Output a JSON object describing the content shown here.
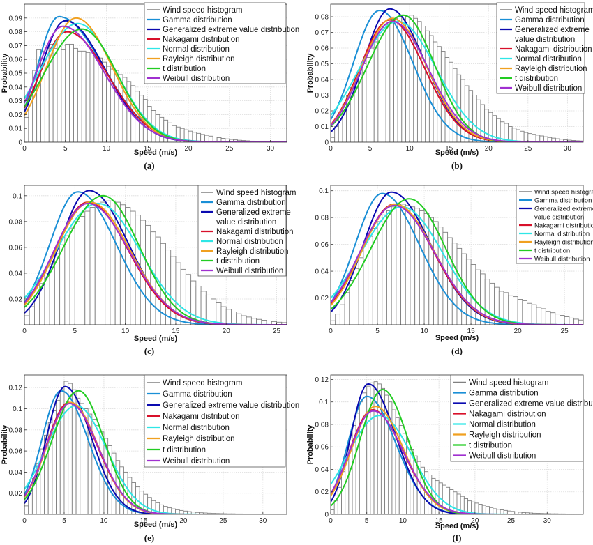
{
  "colors": {
    "histogram": "#808080",
    "gamma": "#1a8fd6",
    "gev": "#0a0ab0",
    "nakagami": "#d8102a",
    "normal": "#2ee6e6",
    "rayleigh": "#f0a020",
    "t": "#22cc22",
    "weibull": "#a030d0"
  },
  "chart_data": [
    {
      "type": "bar",
      "panel_label": "(a)",
      "xlabel": "Speed (m/s)",
      "ylabel": "Probability",
      "xlim": [
        0,
        32
      ],
      "ylim": [
        0,
        0.1
      ],
      "xticks": [
        0,
        5,
        10,
        15,
        20,
        25,
        30
      ],
      "yticks": [
        0,
        0.01,
        0.02,
        0.03,
        0.04,
        0.05,
        0.06,
        0.07,
        0.08,
        0.09
      ],
      "grid": true,
      "legend_position": "top-right",
      "legend": [
        "Wind speed histogram",
        "Gamma distribution",
        "Generalized extreme value distribution",
        "Nakagami distribution",
        "Normal distribution",
        "Rayleigh distribution",
        "t distribution",
        "Weibull distribution"
      ],
      "histogram": {
        "bin_width": 0.5,
        "values": [
          0.018,
          0.032,
          0.052,
          0.067,
          0.066,
          0.069,
          0.071,
          0.068,
          0.074,
          0.067,
          0.071,
          0.071,
          0.068,
          0.066,
          0.066,
          0.065,
          0.064,
          0.063,
          0.061,
          0.058,
          0.055,
          0.053,
          0.052,
          0.049,
          0.047,
          0.044,
          0.041,
          0.037,
          0.034,
          0.031,
          0.026,
          0.023,
          0.02,
          0.018,
          0.016,
          0.014,
          0.012,
          0.011,
          0.01,
          0.009,
          0.008,
          0.0072,
          0.0064,
          0.0056,
          0.005,
          0.0044,
          0.0038,
          0.0033,
          0.0028,
          0.0024,
          0.002,
          0.0017,
          0.0014,
          0.0012,
          0.001,
          0.0008,
          0.0007,
          0.0006,
          0.0005,
          0.0004,
          0.0003,
          0.0003,
          0.0002,
          0.0002
        ]
      },
      "series": [
        {
          "name": "Gamma distribution",
          "peak_x": 4.2,
          "peak_y": 0.091,
          "sd_left": 2.6,
          "sd_right": 5.4
        },
        {
          "name": "Generalized extreme value distribution",
          "peak_x": 5.0,
          "peak_y": 0.088,
          "sd_left": 3.0,
          "sd_right": 4.8
        },
        {
          "name": "Nakagami distribution",
          "peak_x": 5.2,
          "peak_y": 0.08,
          "sd_left": 3.4,
          "sd_right": 5.0
        },
        {
          "name": "Normal distribution",
          "peak_x": 6.5,
          "peak_y": 0.086,
          "sd_left": 4.6,
          "sd_right": 4.6
        },
        {
          "name": "Rayleigh distribution",
          "peak_x": 6.3,
          "peak_y": 0.09,
          "sd_left": 3.6,
          "sd_right": 4.4
        },
        {
          "name": "t distribution",
          "peak_x": 7.0,
          "peak_y": 0.082,
          "sd_left": 4.6,
          "sd_right": 4.3
        },
        {
          "name": "Weibull distribution",
          "peak_x": 4.7,
          "peak_y": 0.084,
          "sd_left": 3.2,
          "sd_right": 5.0
        }
      ]
    },
    {
      "type": "bar",
      "panel_label": "(b)",
      "xlabel": "Speed (m/s)",
      "ylabel": "Probability",
      "xlim": [
        0,
        32
      ],
      "ylim": [
        0,
        0.088
      ],
      "xticks": [
        0,
        5,
        10,
        15,
        20,
        25,
        30
      ],
      "yticks": [
        0,
        0.01,
        0.02,
        0.03,
        0.04,
        0.05,
        0.06,
        0.07,
        0.08
      ],
      "grid": true,
      "legend_position": "top-right",
      "legend": [
        "Wind speed histogram",
        "Gamma distribution",
        "Generalized extreme value distribution",
        "Nakagami distribution",
        "Normal distribution",
        "Rayleigh distribution",
        "t distribution",
        "Weibull distribution"
      ],
      "histogram": {
        "bin_width": 0.5,
        "values": [
          0.003,
          0.01,
          0.018,
          0.024,
          0.03,
          0.035,
          0.041,
          0.046,
          0.05,
          0.054,
          0.06,
          0.064,
          0.068,
          0.073,
          0.075,
          0.077,
          0.079,
          0.08,
          0.081,
          0.08,
          0.081,
          0.079,
          0.077,
          0.074,
          0.071,
          0.068,
          0.064,
          0.061,
          0.058,
          0.054,
          0.051,
          0.047,
          0.043,
          0.04,
          0.036,
          0.033,
          0.03,
          0.027,
          0.024,
          0.021,
          0.019,
          0.017,
          0.015,
          0.013,
          0.012,
          0.01,
          0.009,
          0.008,
          0.007,
          0.0062,
          0.0055,
          0.005,
          0.0045,
          0.004,
          0.0035,
          0.003,
          0.0026,
          0.0022,
          0.0019,
          0.0016,
          0.0013,
          0.0011,
          0.0009,
          0.0008
        ]
      },
      "series": [
        {
          "name": "Gamma distribution",
          "peak_x": 6.2,
          "peak_y": 0.084,
          "sd_left": 3.3,
          "sd_right": 4.2
        },
        {
          "name": "Generalized extreme value distribution",
          "peak_x": 7.5,
          "peak_y": 0.085,
          "sd_left": 3.3,
          "sd_right": 4.4
        },
        {
          "name": "Nakagami distribution",
          "peak_x": 7.5,
          "peak_y": 0.078,
          "sd_left": 3.8,
          "sd_right": 4.4
        },
        {
          "name": "Normal distribution",
          "peak_x": 8.5,
          "peak_y": 0.077,
          "sd_left": 4.9,
          "sd_right": 4.9
        },
        {
          "name": "Rayleigh distribution",
          "peak_x": 7.8,
          "peak_y": 0.079,
          "sd_left": 3.9,
          "sd_right": 4.4
        },
        {
          "name": "t distribution",
          "peak_x": 9.2,
          "peak_y": 0.081,
          "sd_left": 4.5,
          "sd_right": 4.0
        },
        {
          "name": "Weibull distribution",
          "peak_x": 7.8,
          "peak_y": 0.077,
          "sd_left": 3.9,
          "sd_right": 4.6
        }
      ]
    },
    {
      "type": "bar",
      "panel_label": "(c)",
      "xlabel": "Speed (m/s)",
      "ylabel": "",
      "xlim": [
        0,
        26
      ],
      "ylim": [
        0,
        0.108
      ],
      "xticks": [
        0,
        5,
        10,
        15,
        20,
        25
      ],
      "yticks": [
        0.02,
        0.04,
        0.06,
        0.08,
        0.1
      ],
      "grid": true,
      "legend_position": "top-right",
      "legend": [
        "Wind speed histogram",
        "Gamma distribution",
        "Generalized extreme value distribution",
        "Nakagami distribution",
        "Normal distribution",
        "Rayleigh distribution",
        "t distribution",
        "Weibull distribution"
      ],
      "histogram": {
        "bin_width": 0.5,
        "values": [
          0.007,
          0.014,
          0.023,
          0.032,
          0.04,
          0.047,
          0.055,
          0.062,
          0.069,
          0.075,
          0.08,
          0.084,
          0.088,
          0.091,
          0.093,
          0.095,
          0.096,
          0.096,
          0.095,
          0.093,
          0.091,
          0.088,
          0.085,
          0.081,
          0.077,
          0.072,
          0.068,
          0.063,
          0.058,
          0.053,
          0.048,
          0.043,
          0.039,
          0.034,
          0.03,
          0.026,
          0.023,
          0.02,
          0.017,
          0.014,
          0.012,
          0.01,
          0.0085,
          0.007,
          0.006,
          0.005,
          0.0042,
          0.0035,
          0.003,
          0.0025,
          0.002,
          0.0017
        ]
      },
      "series": [
        {
          "name": "Gamma distribution",
          "peak_x": 5.3,
          "peak_y": 0.103,
          "sd_left": 2.8,
          "sd_right": 3.8
        },
        {
          "name": "Generalized extreme value distribution",
          "peak_x": 6.4,
          "peak_y": 0.104,
          "sd_left": 2.9,
          "sd_right": 3.9
        },
        {
          "name": "Nakagami distribution",
          "peak_x": 6.3,
          "peak_y": 0.095,
          "sd_left": 3.3,
          "sd_right": 4.0
        },
        {
          "name": "Normal distribution",
          "peak_x": 7.3,
          "peak_y": 0.094,
          "sd_left": 4.2,
          "sd_right": 4.2
        },
        {
          "name": "Rayleigh distribution",
          "peak_x": 6.5,
          "peak_y": 0.095,
          "sd_left": 3.4,
          "sd_right": 4.0
        },
        {
          "name": "t distribution",
          "peak_x": 7.8,
          "peak_y": 0.1,
          "sd_left": 3.9,
          "sd_right": 3.6
        },
        {
          "name": "Weibull distribution",
          "peak_x": 6.3,
          "peak_y": 0.094,
          "sd_left": 3.4,
          "sd_right": 4.1
        }
      ]
    },
    {
      "type": "bar",
      "panel_label": "(d)",
      "xlabel": "Speed (m/s)",
      "ylabel": "",
      "xlim": [
        0,
        27
      ],
      "ylim": [
        0,
        0.104
      ],
      "xticks": [
        0,
        5,
        10,
        15,
        20,
        25
      ],
      "yticks": [
        0.02,
        0.04,
        0.06,
        0.08,
        0.1
      ],
      "grid": true,
      "legend_position": "top-right",
      "legend": [
        "Wind speed histogram",
        "Gamma distribution",
        "Generalized extreme value distribution",
        "Nakagami distribution",
        "Normal distribution",
        "Rayleigh distribution",
        "t distribution",
        "Weibull distribution"
      ],
      "histogram": {
        "bin_width": 0.5,
        "values": [
          0.003,
          0.008,
          0.015,
          0.024,
          0.033,
          0.042,
          0.05,
          0.058,
          0.066,
          0.072,
          0.077,
          0.082,
          0.085,
          0.088,
          0.09,
          0.09,
          0.089,
          0.088,
          0.087,
          0.085,
          0.083,
          0.08,
          0.077,
          0.073,
          0.069,
          0.065,
          0.061,
          0.057,
          0.053,
          0.049,
          0.045,
          0.041,
          0.038,
          0.034,
          0.031,
          0.028,
          0.025,
          0.024,
          0.022,
          0.021,
          0.019,
          0.018,
          0.016,
          0.015,
          0.013,
          0.012,
          0.01,
          0.009,
          0.008,
          0.007,
          0.006,
          0.005,
          0.0042,
          0.0035
        ]
      },
      "series": [
        {
          "name": "Gamma distribution",
          "peak_x": 5.5,
          "peak_y": 0.098,
          "sd_left": 2.9,
          "sd_right": 4.0
        },
        {
          "name": "Generalized extreme value distribution",
          "peak_x": 6.5,
          "peak_y": 0.099,
          "sd_left": 3.0,
          "sd_right": 4.2
        },
        {
          "name": "Nakagami distribution",
          "peak_x": 6.8,
          "peak_y": 0.09,
          "sd_left": 3.6,
          "sd_right": 4.2
        },
        {
          "name": "Normal distribution",
          "peak_x": 7.6,
          "peak_y": 0.088,
          "sd_left": 4.4,
          "sd_right": 4.4
        },
        {
          "name": "Rayleigh distribution",
          "peak_x": 6.9,
          "peak_y": 0.09,
          "sd_left": 3.6,
          "sd_right": 4.2
        },
        {
          "name": "t distribution",
          "peak_x": 8.4,
          "peak_y": 0.094,
          "sd_left": 4.1,
          "sd_right": 3.9
        },
        {
          "name": "Weibull distribution",
          "peak_x": 6.8,
          "peak_y": 0.089,
          "sd_left": 3.7,
          "sd_right": 4.3
        }
      ]
    },
    {
      "type": "bar",
      "panel_label": "(e)",
      "xlabel": "Speed (m/s)",
      "ylabel": "Probability",
      "xlim": [
        0,
        33
      ],
      "ylim": [
        0,
        0.132
      ],
      "xticks": [
        0,
        5,
        10,
        15,
        20,
        25,
        30
      ],
      "yticks": [
        0.02,
        0.04,
        0.06,
        0.08,
        0.1,
        0.12
      ],
      "grid": true,
      "legend_position": "top-right",
      "legend": [
        "Wind speed histogram",
        "Gamma distribution",
        "Generalized extreme value distribution",
        "Nakagami distribution",
        "Normal distribution",
        "Rayleigh distribution",
        "t distribution",
        "Weibull distribution"
      ],
      "histogram": {
        "bin_width": 0.5,
        "values": [
          0.008,
          0.02,
          0.034,
          0.048,
          0.062,
          0.075,
          0.087,
          0.098,
          0.108,
          0.118,
          0.126,
          0.124,
          0.118,
          0.11,
          0.105,
          0.1,
          0.095,
          0.09,
          0.084,
          0.078,
          0.072,
          0.065,
          0.058,
          0.051,
          0.045,
          0.04,
          0.035,
          0.03,
          0.026,
          0.022,
          0.019,
          0.016,
          0.013,
          0.011,
          0.009,
          0.0075,
          0.0062,
          0.0052,
          0.0044,
          0.0037,
          0.0031,
          0.0026,
          0.0022,
          0.0018,
          0.0015,
          0.0013,
          0.0011,
          0.0009,
          0.0008,
          0.0007,
          0.0006,
          0.0005,
          0.0005,
          0.0004,
          0.0004,
          0.0003,
          0.0003,
          0.0003,
          0.0002,
          0.0002,
          0.0002
        ]
      },
      "series": [
        {
          "name": "Gamma distribution",
          "peak_x": 4.6,
          "peak_y": 0.117,
          "sd_left": 2.4,
          "sd_right": 3.4
        },
        {
          "name": "Generalized extreme value distribution",
          "peak_x": 5.1,
          "peak_y": 0.121,
          "sd_left": 2.3,
          "sd_right": 3.3
        },
        {
          "name": "Nakagami distribution",
          "peak_x": 5.6,
          "peak_y": 0.106,
          "sd_left": 2.9,
          "sd_right": 3.6
        },
        {
          "name": "Normal distribution",
          "peak_x": 6.5,
          "peak_y": 0.103,
          "sd_left": 3.8,
          "sd_right": 3.8
        },
        {
          "name": "Rayleigh distribution",
          "peak_x": 5.8,
          "peak_y": 0.106,
          "sd_left": 3.0,
          "sd_right": 3.5
        },
        {
          "name": "t distribution",
          "peak_x": 6.8,
          "peak_y": 0.117,
          "sd_left": 3.3,
          "sd_right": 3.2
        },
        {
          "name": "Weibull distribution",
          "peak_x": 5.7,
          "peak_y": 0.105,
          "sd_left": 3.0,
          "sd_right": 3.6
        }
      ]
    },
    {
      "type": "bar",
      "panel_label": "(f)",
      "xlabel": "Speed (m/s)",
      "ylabel": "Probability",
      "xlim": [
        0,
        35
      ],
      "ylim": [
        0,
        0.124
      ],
      "xticks": [
        0,
        5,
        10,
        15,
        20,
        25,
        30
      ],
      "yticks": [
        0,
        0.02,
        0.04,
        0.06,
        0.08,
        0.1,
        0.12
      ],
      "grid": true,
      "legend_position": "top-right",
      "legend": [
        "Wind speed histogram",
        "Gamma distribution",
        "Generalized extreme value distribution",
        "Nakagami distribution",
        "Normal distribution",
        "Rayleigh distribution",
        "t distribution",
        "Weibull distribution"
      ],
      "histogram": {
        "bin_width": 0.5,
        "values": [
          0.004,
          0.012,
          0.024,
          0.038,
          0.052,
          0.066,
          0.079,
          0.09,
          0.1,
          0.108,
          0.114,
          0.117,
          0.118,
          0.116,
          0.112,
          0.106,
          0.1,
          0.093,
          0.086,
          0.079,
          0.072,
          0.065,
          0.058,
          0.052,
          0.047,
          0.042,
          0.038,
          0.035,
          0.032,
          0.03,
          0.028,
          0.026,
          0.024,
          0.022,
          0.02,
          0.018,
          0.016,
          0.014,
          0.012,
          0.011,
          0.01,
          0.009,
          0.008,
          0.007,
          0.006,
          0.005,
          0.0045,
          0.004,
          0.0035,
          0.003,
          0.0026,
          0.0022,
          0.0019,
          0.0016,
          0.0014,
          0.0012,
          0.001,
          0.0009,
          0.0008,
          0.0007,
          0.0006,
          0.0005,
          0.0005,
          0.0004,
          0.0004,
          0.0003,
          0.0003,
          0.0003,
          0.0002
        ]
      },
      "series": [
        {
          "name": "Gamma distribution",
          "peak_x": 5.0,
          "peak_y": 0.105,
          "sd_left": 2.6,
          "sd_right": 4.0
        },
        {
          "name": "Generalized extreme value distribution",
          "peak_x": 5.2,
          "peak_y": 0.116,
          "sd_left": 2.4,
          "sd_right": 3.8
        },
        {
          "name": "Nakagami distribution",
          "peak_x": 5.8,
          "peak_y": 0.093,
          "sd_left": 3.2,
          "sd_right": 4.2
        },
        {
          "name": "Normal distribution",
          "peak_x": 6.8,
          "peak_y": 0.088,
          "sd_left": 4.4,
          "sd_right": 4.4
        },
        {
          "name": "Rayleigh distribution",
          "peak_x": 6.2,
          "peak_y": 0.096,
          "sd_left": 3.3,
          "sd_right": 3.9
        },
        {
          "name": "t distribution",
          "peak_x": 7.2,
          "peak_y": 0.111,
          "sd_left": 3.1,
          "sd_right": 3.5
        },
        {
          "name": "Weibull distribution",
          "peak_x": 5.9,
          "peak_y": 0.092,
          "sd_left": 3.3,
          "sd_right": 4.2
        }
      ]
    }
  ]
}
